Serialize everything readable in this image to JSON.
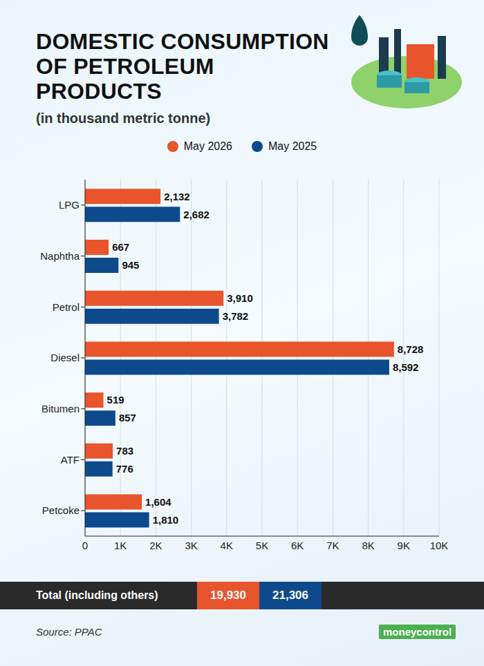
{
  "chart_data": {
    "type": "bar",
    "orientation": "horizontal",
    "title": "DOMESTIC CONSUMPTION OF PETROLEUM PRODUCTS",
    "subtitle": "(in thousand metric tonne)",
    "categories": [
      "LPG",
      "Naphtha",
      "Petrol",
      "Diesel",
      "Bitumen",
      "ATF",
      "Petcoke"
    ],
    "series": [
      {
        "name": "May 2026",
        "color": "#e8542c",
        "values": [
          2132,
          667,
          3910,
          8728,
          519,
          783,
          1604
        ],
        "value_labels": [
          "2,132",
          "667",
          "3,910",
          "8,728",
          "519",
          "783",
          "1,604"
        ]
      },
      {
        "name": "May 2025",
        "color": "#0d4a8c",
        "values": [
          2682,
          945,
          3782,
          8592,
          857,
          776,
          1810
        ],
        "value_labels": [
          "2,682",
          "945",
          "3,782",
          "8,592",
          "857",
          "776",
          "1,810"
        ]
      }
    ],
    "xlim": [
      0,
      10000
    ],
    "xticks": [
      0,
      {
        "value": 1000,
        "label": "1K"
      },
      {
        "value": 2000,
        "label": "2K"
      },
      {
        "value": 3000,
        "label": "3K"
      },
      {
        "value": 4000,
        "label": "4K"
      },
      {
        "value": 5000,
        "label": "5K"
      },
      {
        "value": 6000,
        "label": "6K"
      },
      {
        "value": 7000,
        "label": "7K"
      },
      {
        "value": 8000,
        "label": "8K"
      },
      {
        "value": 9000,
        "label": "9K"
      },
      {
        "value": 10000,
        "label": "10K"
      }
    ],
    "grid": true,
    "data_labels": true,
    "legend": "top",
    "totals": {
      "label": "Total (including others)",
      "values": [
        19930,
        21306
      ],
      "value_labels": [
        "19,930",
        "21,306"
      ]
    },
    "source": "Source: PPAC",
    "brand": "moneycontrol"
  }
}
